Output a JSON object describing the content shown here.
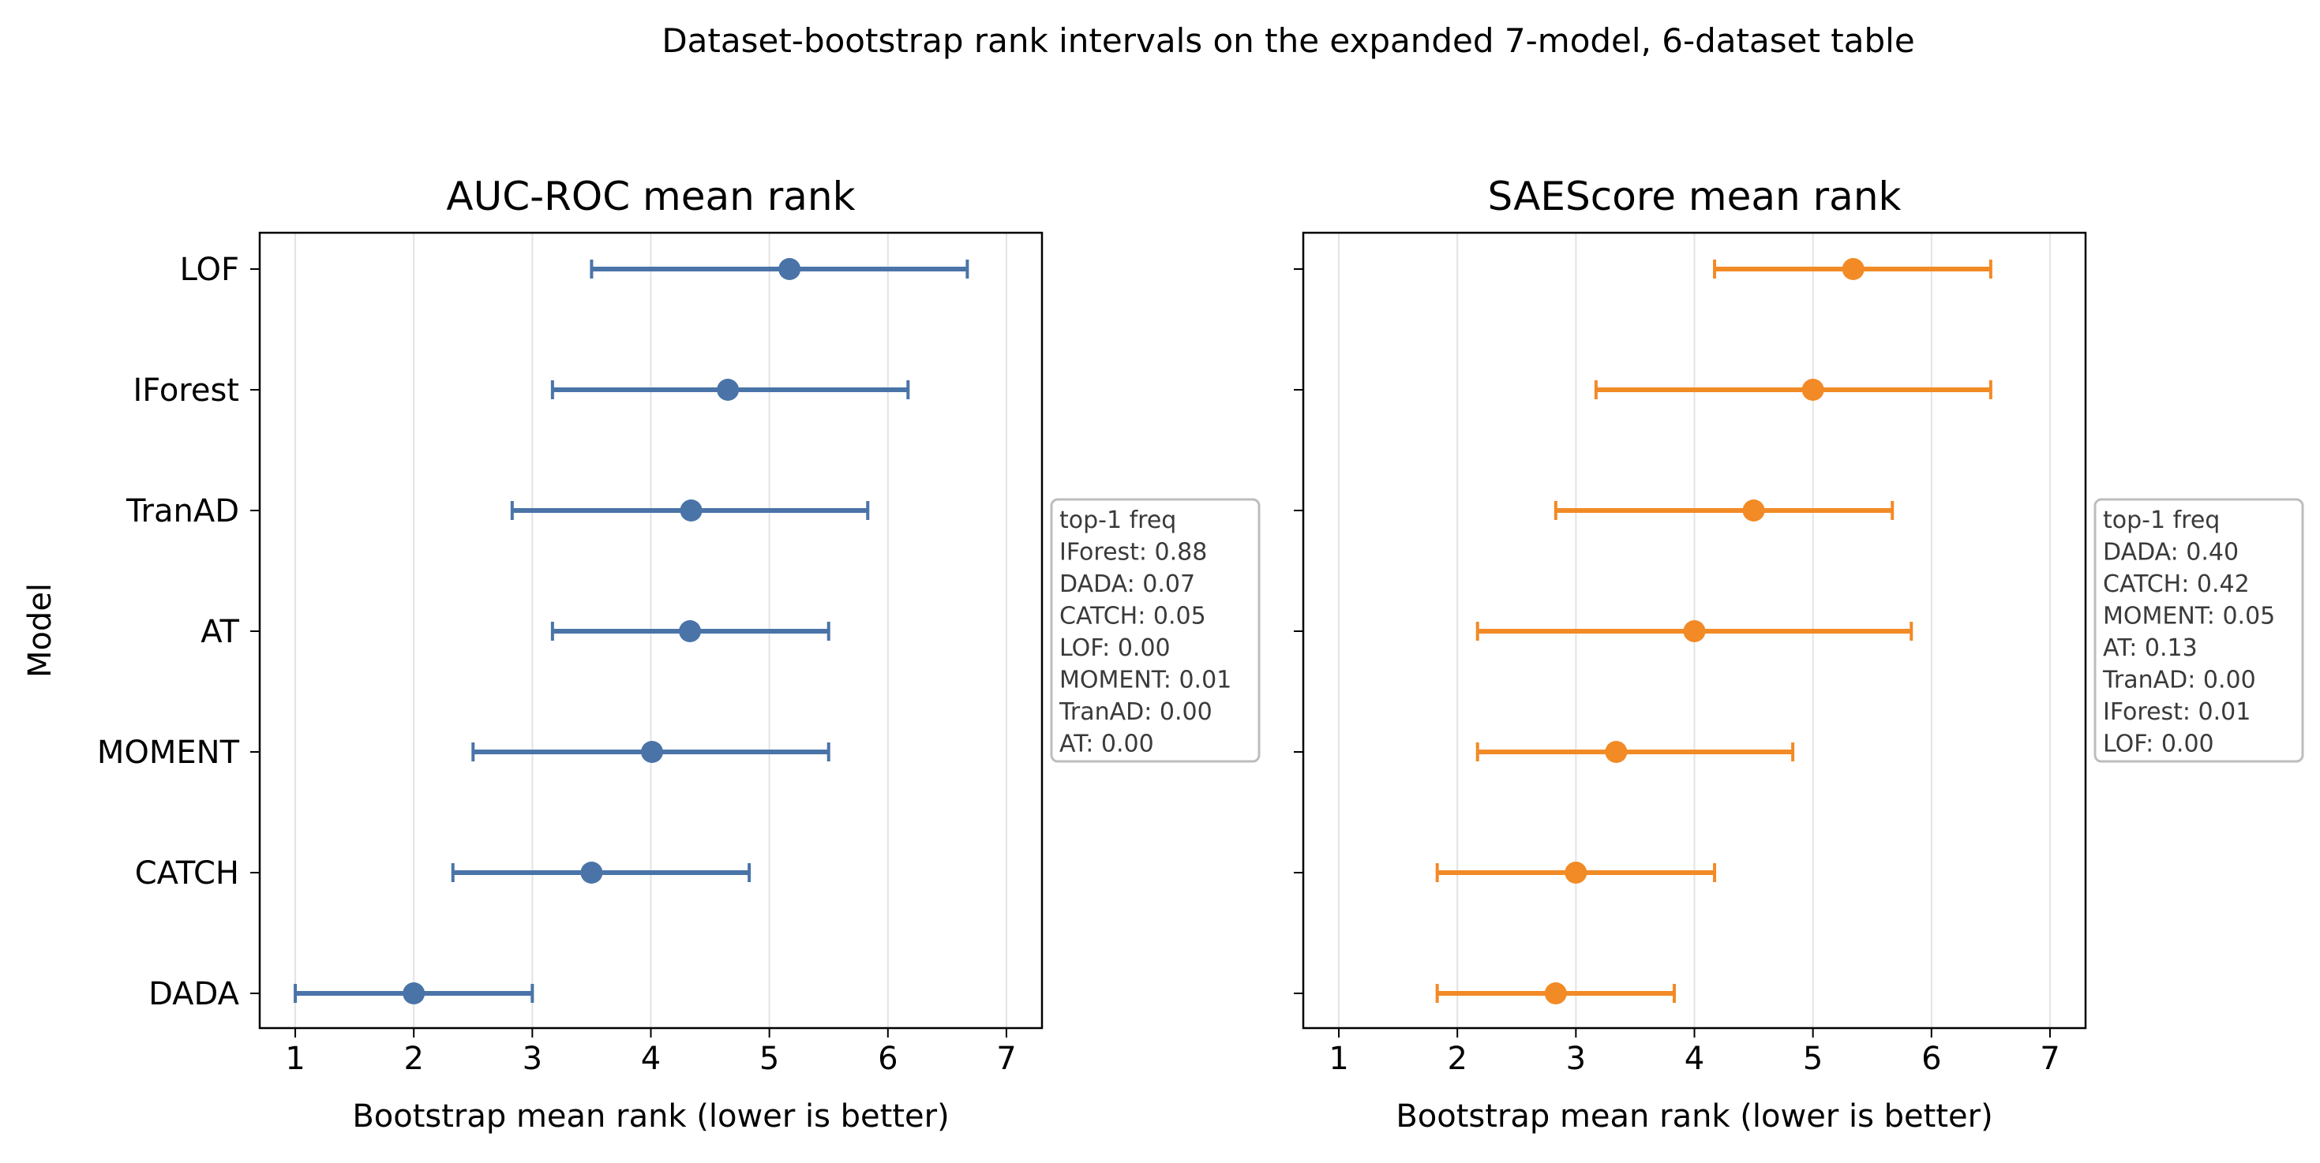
{
  "figure": {
    "suptitle": "Dataset-bootstrap rank intervals on the expanded 7-model, 6-dataset table"
  },
  "chart_data": [
    {
      "type": "errorbar",
      "title": "AUC-ROC mean rank",
      "xlabel": "Bootstrap mean rank (lower is better)",
      "ylabel": "Model",
      "xlim": [
        0.7,
        7.3
      ],
      "xticks": [
        "1",
        "2",
        "3",
        "4",
        "5",
        "6",
        "7"
      ],
      "grid": "x",
      "color": "#4a74a8",
      "categories": [
        "LOF",
        "IForest",
        "TranAD",
        "AT",
        "MOMENT",
        "CATCH",
        "DADA"
      ],
      "points": [
        {
          "model": "LOF",
          "mean": 5.17,
          "low": 3.5,
          "high": 6.67
        },
        {
          "model": "IForest",
          "mean": 4.65,
          "low": 3.17,
          "high": 6.17
        },
        {
          "model": "TranAD",
          "mean": 4.34,
          "low": 2.83,
          "high": 5.83
        },
        {
          "model": "AT",
          "mean": 4.33,
          "low": 3.17,
          "high": 5.5
        },
        {
          "model": "MOMENT",
          "mean": 4.01,
          "low": 2.5,
          "high": 5.5
        },
        {
          "model": "CATCH",
          "mean": 3.5,
          "low": 2.33,
          "high": 4.83
        },
        {
          "model": "DADA",
          "mean": 2.0,
          "low": 1.0,
          "high": 3.0
        }
      ],
      "annotation": {
        "placement": "right-outside",
        "lines": [
          "top-1 freq",
          "IForest: 0.88",
          "DADA: 0.07",
          "CATCH: 0.05",
          "LOF: 0.00",
          "MOMENT: 0.01",
          "TranAD: 0.00",
          "AT: 0.00"
        ]
      }
    },
    {
      "type": "errorbar",
      "title": "SAEScore mean rank",
      "xlabel": "Bootstrap mean rank (lower is better)",
      "ylabel": "",
      "xlim": [
        0.7,
        7.3
      ],
      "xticks": [
        "1",
        "2",
        "3",
        "4",
        "5",
        "6",
        "7"
      ],
      "grid": "x",
      "color": "#f28a26",
      "categories": [
        "LOF",
        "IForest",
        "TranAD",
        "AT",
        "MOMENT",
        "CATCH",
        "DADA"
      ],
      "points": [
        {
          "model": "LOF",
          "mean": 5.34,
          "low": 4.17,
          "high": 6.5
        },
        {
          "model": "IForest",
          "mean": 5.0,
          "low": 3.17,
          "high": 6.5
        },
        {
          "model": "TranAD",
          "mean": 4.5,
          "low": 2.83,
          "high": 5.67
        },
        {
          "model": "AT",
          "mean": 4.0,
          "low": 2.17,
          "high": 5.83
        },
        {
          "model": "MOMENT",
          "mean": 3.34,
          "low": 2.17,
          "high": 4.83
        },
        {
          "model": "CATCH",
          "mean": 3.0,
          "low": 1.83,
          "high": 4.17
        },
        {
          "model": "DADA",
          "mean": 2.83,
          "low": 1.83,
          "high": 3.83
        }
      ],
      "annotation": {
        "placement": "right-outside",
        "lines": [
          "top-1 freq",
          "DADA: 0.40",
          "CATCH: 0.42",
          "MOMENT: 0.05",
          "AT: 0.13",
          "TranAD: 0.00",
          "IForest: 0.01",
          "LOF: 0.00"
        ]
      }
    }
  ]
}
